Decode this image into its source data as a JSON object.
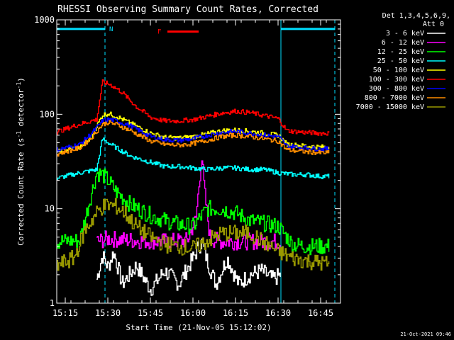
{
  "chart_data": {
    "type": "line",
    "title": "RHESSI Observing Summary Count Rates, Corrected",
    "xlabel": "Start Time (21-Nov-05 15:12:02)",
    "ylabel": "Corrected Count Rate (s⁻¹ detector⁻¹)",
    "ylabel_parts": {
      "main": "Corrected Count Rate (s",
      "exp1": "-1",
      "mid": " detector",
      "exp2": "-1",
      "end": ")"
    },
    "y_scale": "log",
    "ylim": [
      1,
      1000
    ],
    "xlim": [
      "15:12",
      "16:52"
    ],
    "x_tick_labels": [
      "15:15",
      "15:30",
      "15:45",
      "16:00",
      "16:15",
      "16:30",
      "16:45"
    ],
    "y_tick_labels": [
      "1",
      "10",
      "100",
      "1000"
    ],
    "legend_header": [
      "Det 1,3,4,5,6,9,",
      "Att 0"
    ],
    "legend_placement": "right",
    "timestamp": "21-Oct-2021 09:46",
    "series": [
      {
        "name": "3 - 6 keV",
        "color": "#ffffff",
        "x": [
          "15:26",
          "15:28",
          "15:30",
          "15:32",
          "15:35",
          "15:40",
          "15:45",
          "15:50",
          "15:55",
          "16:00",
          "16:03",
          "16:05",
          "16:08",
          "16:12",
          "16:16",
          "16:20",
          "16:24",
          "16:28",
          "16:31"
        ],
        "y": [
          1.8,
          3.2,
          2.4,
          3.5,
          1.6,
          2.5,
          1.4,
          2.2,
          1.6,
          3.0,
          4.5,
          2.8,
          1.6,
          3.0,
          1.6,
          2.0,
          2.2,
          1.8,
          2.0
        ]
      },
      {
        "name": "6 - 12 keV",
        "color": "#ff00ff",
        "x": [
          "15:26",
          "15:30",
          "15:40",
          "15:50",
          "15:58",
          "16:01",
          "16:03",
          "16:04",
          "16:06",
          "16:10",
          "16:20",
          "16:30",
          "16:31"
        ],
        "y": [
          4.5,
          4.8,
          4.6,
          4.5,
          4.6,
          8.0,
          37,
          15,
          4.8,
          4.5,
          4.5,
          4.5,
          4.4
        ]
      },
      {
        "name": "12 - 25 keV",
        "color": "#00ff00",
        "x": [
          "15:12",
          "15:20",
          "15:26",
          "15:28",
          "15:30",
          "15:33",
          "15:38",
          "15:45",
          "15:50",
          "15:55",
          "16:00",
          "16:05",
          "16:10",
          "16:15",
          "16:20",
          "16:25",
          "16:30",
          "16:35",
          "16:40",
          "16:45",
          "16:48"
        ],
        "y": [
          4.5,
          4.6,
          24,
          23,
          20,
          15,
          11,
          8.5,
          7.5,
          6.8,
          6.5,
          10,
          10,
          9,
          7.5,
          7,
          6.5,
          4.2,
          4.0,
          4.0,
          4.0
        ]
      },
      {
        "name": "25 - 50 keV",
        "color": "#00ffff",
        "x": [
          "15:12",
          "15:20",
          "15:26",
          "15:28",
          "15:30",
          "15:33",
          "15:38",
          "15:45",
          "15:50",
          "15:55",
          "16:00",
          "16:05",
          "16:10",
          "16:15",
          "16:20",
          "16:25",
          "16:30",
          "16:35",
          "16:40",
          "16:45",
          "16:48"
        ],
        "y": [
          21,
          24,
          26,
          55,
          50,
          44,
          36,
          31,
          28,
          28,
          27,
          26,
          27,
          27,
          26,
          26,
          24,
          23,
          23,
          22,
          22
        ]
      },
      {
        "name": "50 - 100 keV",
        "color": "#ffff00",
        "x": [
          "15:12",
          "15:20",
          "15:24",
          "15:26",
          "15:28",
          "15:30",
          "15:33",
          "15:38",
          "15:45",
          "15:50",
          "15:55",
          "16:00",
          "16:05",
          "16:10",
          "16:15",
          "16:20",
          "16:25",
          "16:30",
          "16:33",
          "16:40",
          "16:45",
          "16:48"
        ],
        "y": [
          40,
          45,
          55,
          75,
          98,
          102,
          95,
          80,
          63,
          57,
          56,
          58,
          62,
          67,
          68,
          66,
          63,
          60,
          48,
          46,
          45,
          45
        ]
      },
      {
        "name": "100 - 300 keV",
        "color": "#ff0000",
        "x": [
          "15:12",
          "15:18",
          "15:24",
          "15:26",
          "15:28",
          "15:31",
          "15:35",
          "15:40",
          "15:45",
          "15:50",
          "15:55",
          "16:00",
          "16:05",
          "16:10",
          "16:15",
          "16:20",
          "16:25",
          "16:30",
          "16:33",
          "16:40",
          "16:45",
          "16:48"
        ],
        "y": [
          65,
          75,
          85,
          88,
          220,
          205,
          170,
          120,
          93,
          85,
          85,
          88,
          95,
          103,
          108,
          104,
          97,
          90,
          67,
          64,
          63,
          63
        ]
      },
      {
        "name": "300 - 800 keV",
        "color": "#0000ff",
        "x": [
          "15:12",
          "15:20",
          "15:24",
          "15:26",
          "15:28",
          "15:30",
          "15:33",
          "15:38",
          "15:45",
          "15:50",
          "15:55",
          "16:00",
          "16:05",
          "16:10",
          "16:15",
          "16:20",
          "16:25",
          "16:30",
          "16:33",
          "16:40",
          "16:45",
          "16:48"
        ],
        "y": [
          42,
          48,
          62,
          72,
          85,
          88,
          85,
          75,
          58,
          54,
          53,
          55,
          60,
          64,
          66,
          63,
          60,
          58,
          46,
          44,
          43,
          43
        ]
      },
      {
        "name": "800 - 7000 keV",
        "color": "#ff8c00",
        "x": [
          "15:12",
          "15:20",
          "15:24",
          "15:26",
          "15:28",
          "15:30",
          "15:33",
          "15:38",
          "15:45",
          "15:50",
          "15:55",
          "16:00",
          "16:05",
          "16:10",
          "16:15",
          "16:20",
          "16:25",
          "16:30",
          "16:33",
          "16:40",
          "16:45",
          "16:48"
        ],
        "y": [
          38,
          44,
          56,
          66,
          78,
          82,
          78,
          67,
          52,
          48,
          47,
          49,
          53,
          58,
          60,
          58,
          55,
          52,
          42,
          40,
          39,
          39
        ]
      },
      {
        "name": "7000 - 15000 keV",
        "color": "#999900",
        "x": [
          "15:12",
          "15:18",
          "15:22",
          "15:26",
          "15:28",
          "15:30",
          "15:33",
          "15:36",
          "15:40",
          "15:45",
          "15:50",
          "15:55",
          "16:00",
          "16:10",
          "16:20",
          "16:30",
          "16:35",
          "16:40",
          "16:48"
        ],
        "y": [
          2.5,
          3.0,
          6.0,
          9.0,
          10.5,
          11,
          10.5,
          9,
          6.5,
          5.0,
          4.2,
          4.0,
          3.8,
          5.5,
          5.5,
          3.5,
          3.0,
          2.8,
          2.6
        ]
      }
    ],
    "cyan_bars": [
      {
        "from": "15:12",
        "to": "15:29",
        "value": 800,
        "label": "N"
      },
      {
        "from": "16:31",
        "to": "16:50",
        "value": 800,
        "label": ""
      }
    ],
    "red_bar": {
      "from": "15:51",
      "to": "16:02",
      "value": 750,
      "label": "F"
    },
    "vlines_solid": [
      "15:12",
      "16:31"
    ],
    "vlines_dashed": [
      "15:29",
      "16:50"
    ]
  },
  "colors": {
    "background": "#000000",
    "axis": "#ffffff",
    "flag": "#00e0ff"
  }
}
